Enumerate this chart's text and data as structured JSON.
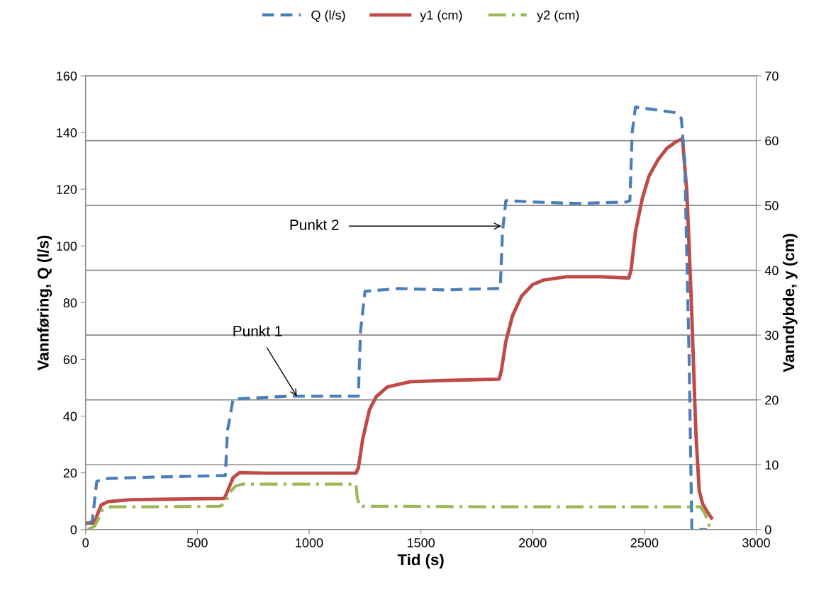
{
  "chart_data": {
    "type": "line",
    "xlabel": "Tid (s)",
    "ylabel": "Vannføring, Q (l/s)",
    "y2label": "Vanndybde, y (cm)",
    "xlim": [
      0,
      3000
    ],
    "xticks": [
      0,
      500,
      1000,
      1500,
      2000,
      2500,
      3000
    ],
    "ylim": [
      0,
      160
    ],
    "yticks": [
      0,
      20,
      40,
      60,
      80,
      100,
      120,
      140,
      160
    ],
    "y2lim": [
      0,
      70
    ],
    "y2ticks": [
      0,
      10,
      20,
      30,
      40,
      50,
      60,
      70
    ],
    "grid": "y2",
    "legend": "top",
    "marker": "none",
    "series": [
      {
        "name": "Q (l/s)",
        "color": "#4a7ebb",
        "line_style": "dashed",
        "x": [
          10,
          30,
          40,
          50,
          100,
          300,
          600,
          625,
          635,
          660,
          900,
          1210,
          1220,
          1230,
          1250,
          1400,
          1600,
          1840,
          1855,
          1865,
          1880,
          2000,
          2200,
          2420,
          2435,
          2445,
          2460,
          2550,
          2640,
          2665,
          2680,
          2700,
          2712,
          2730,
          2780
        ],
        "values": [
          2,
          3,
          10,
          17,
          18,
          18.5,
          19,
          19,
          35,
          46,
          47,
          47,
          47,
          70,
          84,
          85,
          84.5,
          85,
          85,
          105,
          116,
          115.5,
          115,
          115.5,
          116,
          140,
          149,
          148,
          147,
          145,
          130,
          60,
          0,
          0,
          0
        ]
      },
      {
        "name": "y1 (cm)",
        "axis": "y2",
        "color": "#be4b48",
        "line_style": "solid",
        "x": [
          0,
          40,
          55,
          70,
          100,
          200,
          400,
          620,
          630,
          660,
          690,
          800,
          1000,
          1210,
          1220,
          1240,
          1270,
          1300,
          1350,
          1450,
          1600,
          1850,
          1860,
          1880,
          1910,
          1950,
          2000,
          2050,
          2150,
          2300,
          2430,
          2440,
          2460,
          2490,
          2520,
          2560,
          2600,
          2640,
          2670,
          2690,
          2710,
          2730,
          2745,
          2760,
          2780,
          2800
        ],
        "values": [
          1,
          1,
          2.5,
          3.8,
          4.3,
          4.6,
          4.7,
          4.8,
          5.5,
          8,
          8.8,
          8.7,
          8.7,
          8.7,
          9.5,
          14,
          18.5,
          20.5,
          22,
          22.8,
          23,
          23.2,
          24.5,
          29,
          33,
          36,
          37.8,
          38.5,
          39,
          39,
          38.8,
          40,
          46,
          51,
          54.5,
          57,
          58.8,
          59.8,
          60.3,
          52,
          35,
          15,
          6,
          4,
          2.8,
          1.8
        ]
      },
      {
        "name": "y2 (cm)",
        "axis": "y2",
        "color": "#98b954",
        "line_style": "dashdot",
        "x": [
          10,
          40,
          55,
          75,
          110,
          300,
          600,
          625,
          640,
          670,
          700,
          900,
          1210,
          1215,
          1225,
          1400,
          1800,
          2200,
          2600,
          2750,
          2770,
          2790,
          2800
        ],
        "values": [
          0,
          0.5,
          1.5,
          3,
          3.5,
          3.5,
          3.6,
          4,
          5.5,
          6.7,
          7,
          7,
          7,
          5,
          3.6,
          3.6,
          3.5,
          3.5,
          3.5,
          3.5,
          2.5,
          0.6,
          0.3
        ]
      }
    ],
    "annotations": [
      {
        "text": "Punkt 1",
        "x": 945,
        "y": 47
      },
      {
        "text": "Punkt 2",
        "x": 1860,
        "y": 107
      }
    ]
  }
}
